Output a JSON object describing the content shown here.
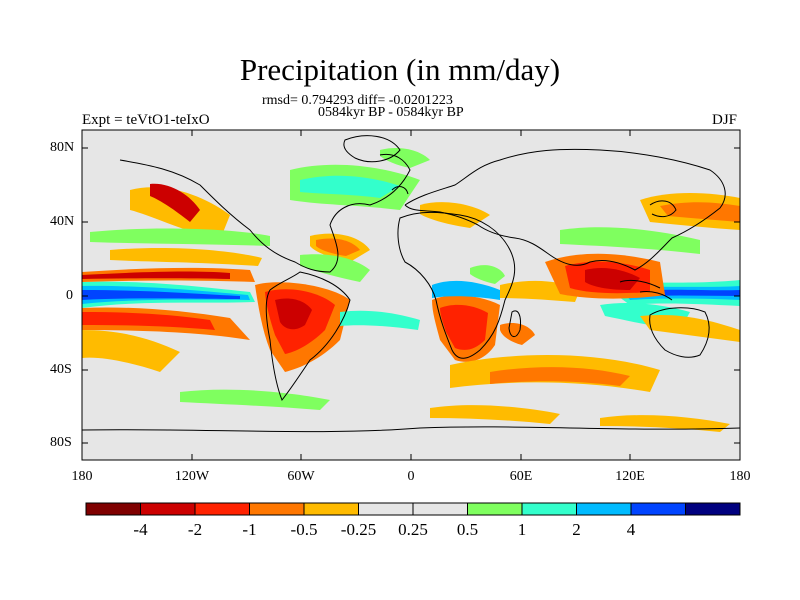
{
  "title": "Precipitation (in mm/day)",
  "subtitle_stats": "rmsd= 0.794293 diff= -0.0201223",
  "subtitle_period": "0584kyr BP - 0584kyr BP",
  "left_label": "Expt = teVtO1-teIxO",
  "right_label": "DJF",
  "lat_labels": [
    "80N",
    "40N",
    "0",
    "40S",
    "80S"
  ],
  "lon_labels": [
    "180",
    "120W",
    "60W",
    "0",
    "60E",
    "120E",
    "180"
  ],
  "colorbar": {
    "colors": [
      "#7f0000",
      "#cc0000",
      "#ff2200",
      "#ff7700",
      "#ffbb00",
      "#e6e6e6",
      "#e6e6e6",
      "#7fff5f",
      "#33ffcc",
      "#00bbff",
      "#0044ff",
      "#00007f"
    ],
    "labels": [
      "-4",
      "-2",
      "-1",
      "-0.5",
      "-0.25",
      "0.25",
      "0.5",
      "1",
      "2",
      "4"
    ]
  }
}
